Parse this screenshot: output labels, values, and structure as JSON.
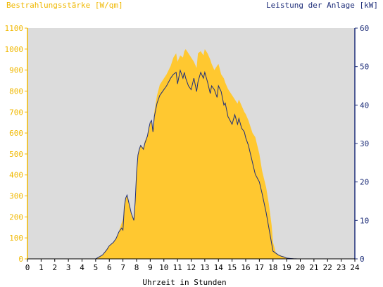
{
  "chart_data": {
    "type": "area",
    "left_axis_title": "Bestrahlungsstärke [W/qm]",
    "right_axis_title": "Leistung der Anlage [kW]",
    "xlabel": "Uhrzeit in Stunden",
    "x_ticks": [
      "0",
      "1",
      "2",
      "3",
      "4",
      "5",
      "6",
      "7",
      "8",
      "9",
      "10",
      "11",
      "12",
      "13",
      "14",
      "15",
      "16",
      "17",
      "18",
      "19",
      "20",
      "21",
      "22",
      "23",
      "24"
    ],
    "y_left_ticks": [
      "0",
      "100",
      "200",
      "300",
      "400",
      "500",
      "600",
      "700",
      "800",
      "900",
      "1000",
      "1100"
    ],
    "y_right_ticks": [
      "0",
      "10",
      "20",
      "30",
      "40",
      "50",
      "60"
    ],
    "xlim": [
      0,
      24
    ],
    "ylim_left": [
      0,
      1100
    ],
    "ylim_right": [
      0,
      60
    ],
    "grid": false,
    "colors": {
      "plot_background": "#dcdcdc",
      "irradiance_fill": "#ffc830",
      "power_line": "#1f2f7a",
      "left_axis": "#f0b800",
      "right_axis": "#1f2f7a"
    },
    "series": [
      {
        "axis": "left",
        "x": [
          0,
          5.0,
          5.2,
          5.5,
          5.8,
          6.0,
          6.3,
          6.5,
          6.7,
          6.9,
          7.0,
          7.1,
          7.2,
          7.3,
          7.5,
          7.6,
          7.7,
          7.8,
          7.9,
          8.0,
          8.1,
          8.2,
          8.3,
          8.5,
          8.6,
          8.8,
          8.9,
          9.0,
          9.1,
          9.2,
          9.3,
          9.5,
          9.7,
          10.0,
          10.2,
          10.5,
          10.7,
          10.9,
          11.0,
          11.2,
          11.4,
          11.5,
          11.6,
          11.8,
          12.0,
          12.2,
          12.4,
          12.5,
          12.7,
          12.9,
          13.0,
          13.2,
          13.4,
          13.5,
          13.7,
          13.9,
          14.0,
          14.2,
          14.4,
          14.5,
          14.7,
          15.0,
          15.2,
          15.4,
          15.5,
          15.7,
          15.9,
          16.0,
          16.2,
          16.4,
          16.5,
          16.7,
          17.0,
          17.2,
          17.5,
          17.7,
          17.9,
          18.0,
          18.2,
          18.4,
          18.6,
          18.8,
          19.0,
          19.3,
          19.5,
          19.8,
          20.0,
          20.5,
          24
        ],
        "y": [
          0,
          0,
          8,
          20,
          45,
          65,
          80,
          100,
          130,
          170,
          190,
          240,
          290,
          305,
          250,
          220,
          200,
          190,
          290,
          420,
          490,
          520,
          540,
          530,
          560,
          590,
          610,
          650,
          650,
          620,
          700,
          780,
          830,
          860,
          880,
          920,
          960,
          980,
          940,
          970,
          960,
          990,
          1000,
          980,
          960,
          940,
          910,
          980,
          990,
          970,
          1000,
          980,
          950,
          930,
          900,
          920,
          930,
          880,
          860,
          840,
          810,
          780,
          760,
          740,
          760,
          730,
          700,
          690,
          660,
          620,
          600,
          580,
          500,
          420,
          340,
          260,
          160,
          80,
          30,
          20,
          15,
          10,
          5,
          3,
          2,
          1,
          0,
          0,
          0
        ]
      },
      {
        "axis": "right",
        "x": [
          0,
          5.0,
          5.2,
          5.5,
          5.8,
          6.0,
          6.3,
          6.5,
          6.7,
          6.9,
          7.0,
          7.1,
          7.2,
          7.3,
          7.5,
          7.6,
          7.7,
          7.8,
          7.9,
          8.0,
          8.1,
          8.2,
          8.3,
          8.5,
          8.6,
          8.8,
          8.9,
          9.0,
          9.1,
          9.2,
          9.3,
          9.5,
          9.7,
          10.0,
          10.2,
          10.5,
          10.7,
          10.9,
          11.0,
          11.2,
          11.4,
          11.5,
          11.6,
          11.8,
          12.0,
          12.2,
          12.4,
          12.5,
          12.7,
          12.9,
          13.0,
          13.2,
          13.4,
          13.5,
          13.7,
          13.9,
          14.0,
          14.2,
          14.4,
          14.5,
          14.7,
          15.0,
          15.2,
          15.4,
          15.5,
          15.7,
          15.9,
          16.0,
          16.2,
          16.4,
          16.5,
          16.7,
          17.0,
          17.2,
          17.5,
          17.7,
          17.9,
          18.0,
          18.2,
          18.4,
          18.6,
          18.8,
          19.0,
          19.3,
          19.5,
          19.8,
          20.0,
          20.5,
          24
        ],
        "y": [
          0,
          0,
          0.4,
          1.0,
          2.3,
          3.4,
          4.3,
          5.3,
          7.0,
          8.0,
          7.5,
          13.5,
          15.8,
          16.6,
          13.6,
          12.0,
          11.0,
          10.0,
          15.0,
          22.5,
          27.0,
          28.5,
          29.5,
          28.5,
          30.0,
          32.0,
          34.0,
          35.5,
          36.0,
          33.0,
          37.0,
          40.5,
          42.5,
          44.0,
          45.0,
          47.0,
          48.0,
          48.5,
          45.5,
          49.0,
          47.0,
          48.5,
          47.0,
          45.0,
          44.0,
          47.0,
          43.5,
          46.0,
          48.5,
          47.0,
          48.5,
          46.0,
          43.0,
          45.0,
          44.0,
          42.0,
          45.0,
          43.5,
          40.0,
          40.5,
          37.0,
          35.0,
          37.5,
          35.0,
          36.5,
          34.0,
          33.0,
          31.5,
          29.5,
          26.5,
          25.0,
          22.0,
          20.0,
          17.0,
          12.0,
          8.0,
          4.0,
          2.0,
          1.5,
          1.0,
          0.7,
          0.5,
          0.2,
          0.1,
          0.05,
          0,
          0,
          0,
          0
        ]
      }
    ]
  }
}
